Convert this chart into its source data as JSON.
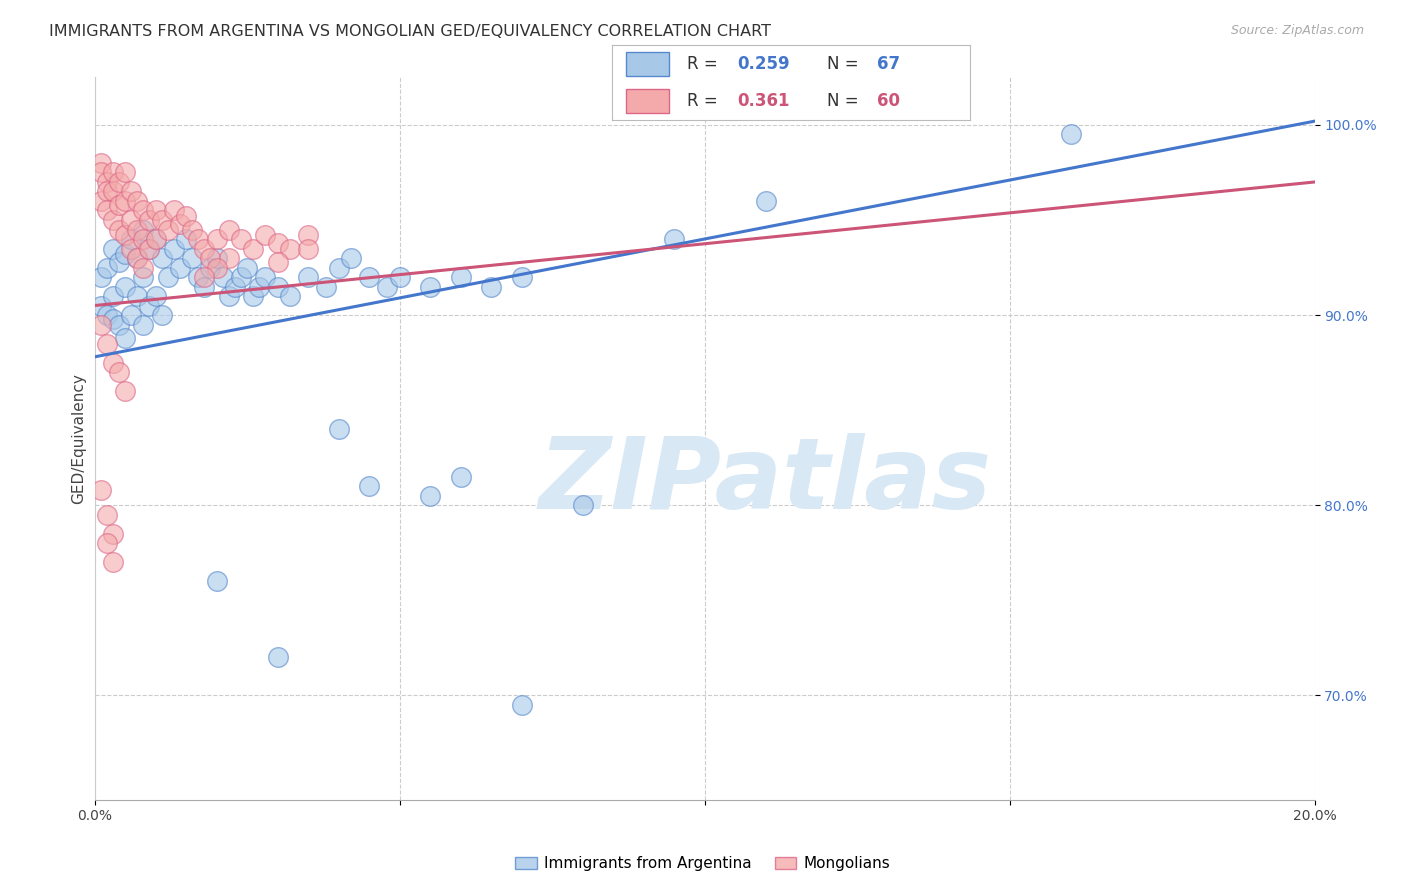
{
  "title": "IMMIGRANTS FROM ARGENTINA VS MONGOLIAN GED/EQUIVALENCY CORRELATION CHART",
  "source": "Source: ZipAtlas.com",
  "ylabel": "GED/Equivalency",
  "xlim": [
    0.0,
    0.2
  ],
  "ylim": [
    0.645,
    1.025
  ],
  "xticks": [
    0.0,
    0.05,
    0.1,
    0.15,
    0.2
  ],
  "xticklabels": [
    "0.0%",
    "",
    "",
    "",
    "20.0%"
  ],
  "yticks": [
    0.7,
    0.8,
    0.9,
    1.0
  ],
  "yticklabels": [
    "70.0%",
    "80.0%",
    "90.0%",
    "100.0%"
  ],
  "blue_color": "#A8C8E8",
  "pink_color": "#F4AAAA",
  "blue_edge_color": "#5588CC",
  "pink_edge_color": "#DD6688",
  "blue_line_color": "#4477CC",
  "pink_line_color": "#CC5577",
  "background_color": "#FFFFFF",
  "watermark_color": "#D8E8F4",
  "blue_scatter_x": [
    0.001,
    0.001,
    0.002,
    0.002,
    0.003,
    0.003,
    0.003,
    0.004,
    0.004,
    0.005,
    0.005,
    0.005,
    0.006,
    0.006,
    0.007,
    0.007,
    0.008,
    0.008,
    0.008,
    0.009,
    0.009,
    0.01,
    0.01,
    0.011,
    0.011,
    0.012,
    0.013,
    0.014,
    0.015,
    0.016,
    0.017,
    0.018,
    0.019,
    0.02,
    0.021,
    0.022,
    0.023,
    0.024,
    0.025,
    0.026,
    0.027,
    0.028,
    0.03,
    0.032,
    0.035,
    0.038,
    0.04,
    0.042,
    0.045,
    0.048,
    0.05,
    0.055,
    0.06,
    0.065,
    0.07,
    0.095,
    0.11,
    0.16,
    0.04,
    0.06,
    0.08,
    0.02,
    0.03,
    0.045,
    0.055,
    0.07
  ],
  "blue_scatter_y": [
    0.92,
    0.905,
    0.925,
    0.9,
    0.935,
    0.91,
    0.898,
    0.928,
    0.895,
    0.932,
    0.915,
    0.888,
    0.94,
    0.9,
    0.93,
    0.91,
    0.945,
    0.92,
    0.895,
    0.935,
    0.905,
    0.94,
    0.91,
    0.93,
    0.9,
    0.92,
    0.935,
    0.925,
    0.94,
    0.93,
    0.92,
    0.915,
    0.925,
    0.93,
    0.92,
    0.91,
    0.915,
    0.92,
    0.925,
    0.91,
    0.915,
    0.92,
    0.915,
    0.91,
    0.92,
    0.915,
    0.925,
    0.93,
    0.92,
    0.915,
    0.92,
    0.915,
    0.92,
    0.915,
    0.92,
    0.94,
    0.96,
    0.995,
    0.84,
    0.815,
    0.8,
    0.76,
    0.72,
    0.81,
    0.805,
    0.695
  ],
  "pink_scatter_x": [
    0.001,
    0.001,
    0.001,
    0.002,
    0.002,
    0.002,
    0.003,
    0.003,
    0.003,
    0.004,
    0.004,
    0.004,
    0.005,
    0.005,
    0.005,
    0.006,
    0.006,
    0.006,
    0.007,
    0.007,
    0.007,
    0.008,
    0.008,
    0.008,
    0.009,
    0.009,
    0.01,
    0.01,
    0.011,
    0.012,
    0.013,
    0.014,
    0.015,
    0.016,
    0.017,
    0.018,
    0.019,
    0.02,
    0.022,
    0.024,
    0.026,
    0.028,
    0.03,
    0.032,
    0.035,
    0.001,
    0.002,
    0.003,
    0.004,
    0.005,
    0.001,
    0.002,
    0.003,
    0.002,
    0.003,
    0.022,
    0.03,
    0.035,
    0.02,
    0.018
  ],
  "pink_scatter_y": [
    0.98,
    0.96,
    0.975,
    0.97,
    0.965,
    0.955,
    0.975,
    0.965,
    0.95,
    0.97,
    0.958,
    0.945,
    0.975,
    0.96,
    0.942,
    0.965,
    0.95,
    0.935,
    0.96,
    0.945,
    0.93,
    0.955,
    0.94,
    0.925,
    0.95,
    0.935,
    0.955,
    0.94,
    0.95,
    0.945,
    0.955,
    0.948,
    0.952,
    0.945,
    0.94,
    0.935,
    0.93,
    0.94,
    0.945,
    0.94,
    0.935,
    0.942,
    0.938,
    0.935,
    0.942,
    0.895,
    0.885,
    0.875,
    0.87,
    0.86,
    0.808,
    0.795,
    0.785,
    0.78,
    0.77,
    0.93,
    0.928,
    0.935,
    0.925,
    0.92
  ],
  "title_fontsize": 11.5,
  "tick_fontsize": 10,
  "ylabel_fontsize": 11
}
